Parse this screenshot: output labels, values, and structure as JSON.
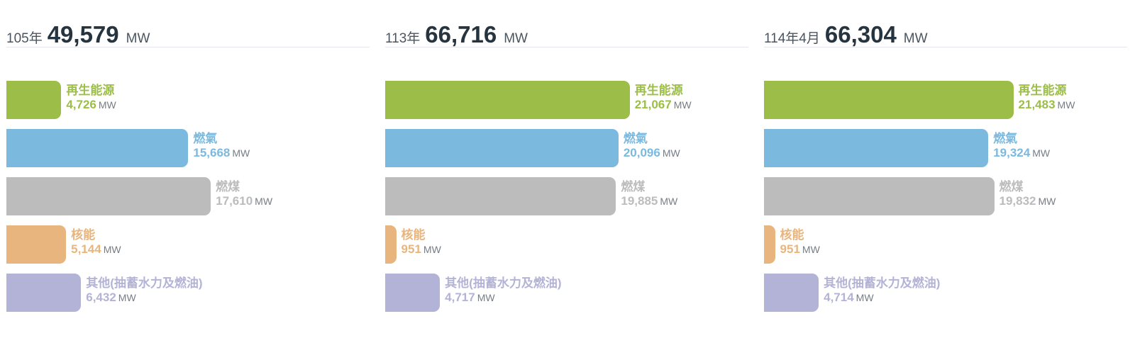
{
  "unit": "MW",
  "chart_data": {
    "type": "bar",
    "categories": [
      "再生能源",
      "燃氣",
      "燃煤",
      "核能",
      "其他(抽蓄水力及燃油)"
    ],
    "colors": [
      "#9cbe48",
      "#7cb9de",
      "#bcbcbc",
      "#e8b57e",
      "#b3b3d7"
    ],
    "xlim": [
      0,
      22000
    ],
    "panels": [
      {
        "period": "105年",
        "total": "49,579",
        "values": [
          4726,
          15668,
          17610,
          5144,
          6432
        ],
        "value_labels": [
          "4,726",
          "15,668",
          "17,610",
          "5,144",
          "6,432"
        ]
      },
      {
        "period": "113年",
        "total": "66,716",
        "values": [
          21067,
          20096,
          19885,
          951,
          4717
        ],
        "value_labels": [
          "21,067",
          "20,096",
          "19,885",
          "951",
          "4,717"
        ]
      },
      {
        "period": "114年4月",
        "total": "66,304",
        "values": [
          21483,
          19324,
          19832,
          951,
          4714
        ],
        "value_labels": [
          "21,483",
          "19,324",
          "19,832",
          "951",
          "4,714"
        ]
      }
    ]
  }
}
